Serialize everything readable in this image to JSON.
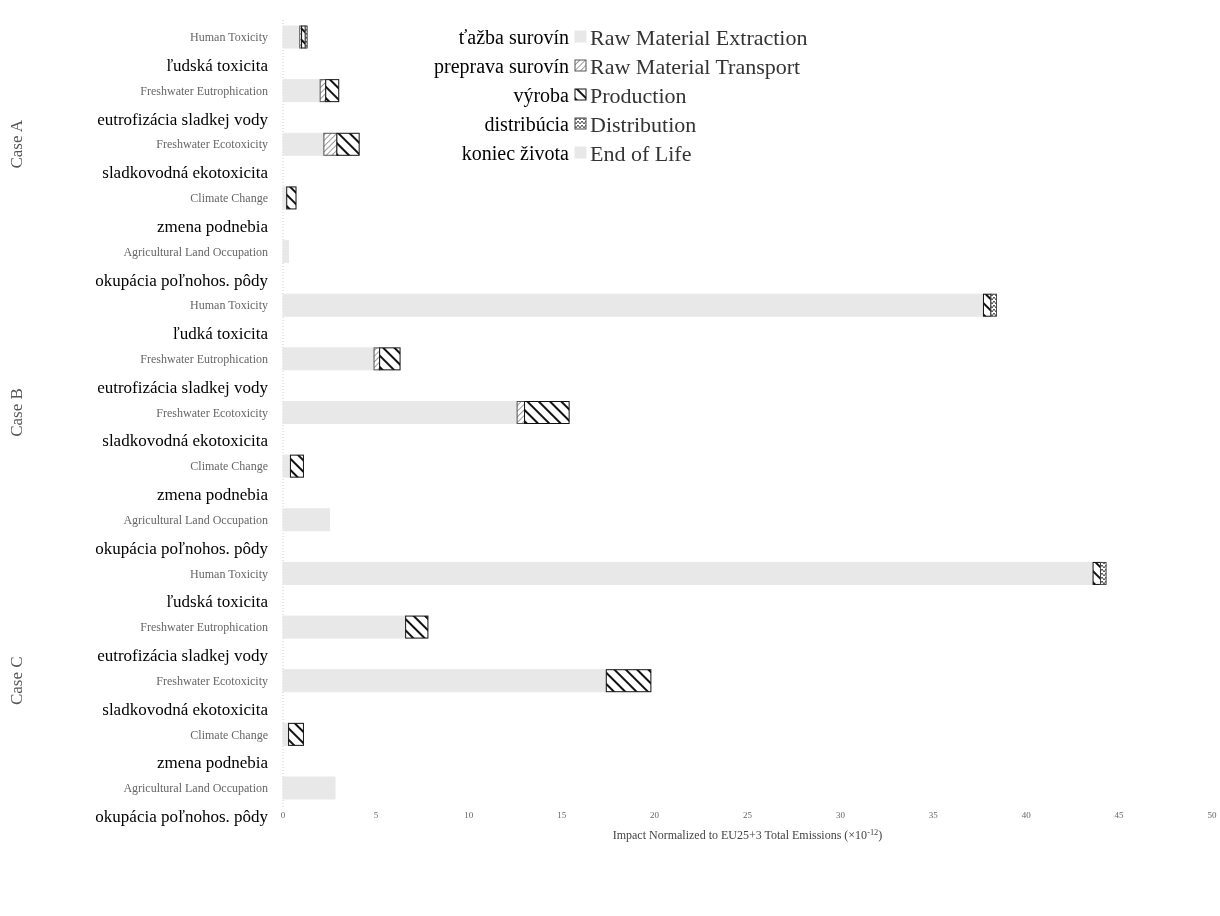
{
  "chart_data": {
    "type": "bar",
    "orientation": "horizontal",
    "stacked": true,
    "legend": "top",
    "xlabel": "Impact Normalized to EU25+3 Total Emissions (×10$^{-12}$)",
    "xlim": [
      0,
      50
    ],
    "xticks": [
      0,
      5,
      10,
      15,
      20,
      25,
      30,
      35,
      40,
      45,
      50
    ],
    "categories": [
      "Human Toxicity",
      "Freshwater Eutrophication",
      "Freshwater Ecotoxicity",
      "Climate Change",
      "Agricultural Land Occupation",
      "Human Toxicity",
      "Freshwater Eutrophication",
      "Freshwater Ecotoxicity",
      "Climate Change",
      "Agricultural Land Occupation",
      "Human Toxicity",
      "Freshwater Eutrophication",
      "Freshwater Ecotoxicity",
      "Climate Change",
      "Agricultural Land Occupation"
    ],
    "series": [
      {
        "name": "Raw Material Extraction",
        "color": "#e8e8e8",
        "values": [
          0.9,
          2.0,
          2.2,
          0.2,
          0.3,
          37.7,
          4.9,
          12.6,
          0.4,
          2.5,
          43.6,
          6.6,
          17.4,
          0.3,
          2.8
        ]
      },
      {
        "name": "Raw Material Transport",
        "color": "#555555",
        "values": [
          0.1,
          0.3,
          0.7,
          0,
          0,
          0,
          0.3,
          0.4,
          0,
          0,
          0,
          0,
          0,
          0,
          0
        ]
      },
      {
        "name": "Production",
        "color": "#111111",
        "values": [
          0.2,
          0.7,
          1.2,
          0.5,
          0,
          0.4,
          1.1,
          2.4,
          0.7,
          0,
          0.4,
          1.2,
          2.4,
          0.8,
          0
        ]
      },
      {
        "name": "Distribution",
        "color": "#444444",
        "values": [
          0.1,
          0,
          0,
          0,
          0,
          0.3,
          0,
          0,
          0,
          0,
          0.3,
          0,
          0,
          0,
          0
        ]
      },
      {
        "name": "End of Life",
        "color": "#e8e8e8",
        "values": [
          0,
          0,
          0,
          0,
          0,
          0,
          0,
          0,
          0,
          0,
          0,
          0,
          0,
          0,
          0
        ]
      }
    ],
    "annotations": [
      "ľudská toxicita",
      "eutrofizácia sladkej vody",
      "sladkovodná  ekotoxicita",
      "zmena podnebia",
      "okupácia poľnohos. pôdy",
      "ľudká toxicita",
      "eutrofizácia sladkej vody",
      "sladkovodná ekotoxicita",
      "zmena podnebia",
      "okupácia poľnohos. pôdy",
      "ľudská toxicita",
      "eutrofizácia sladkej vody",
      "sladkovodná ekotoxicita",
      "zmena podnebia",
      "okupácia poľnohos. pôdy",
      "Case A",
      "Case B",
      "Case C",
      "ťažba surovín",
      "preprava surovín",
      "výroba",
      "distribúcia",
      "koniec života"
    ]
  }
}
